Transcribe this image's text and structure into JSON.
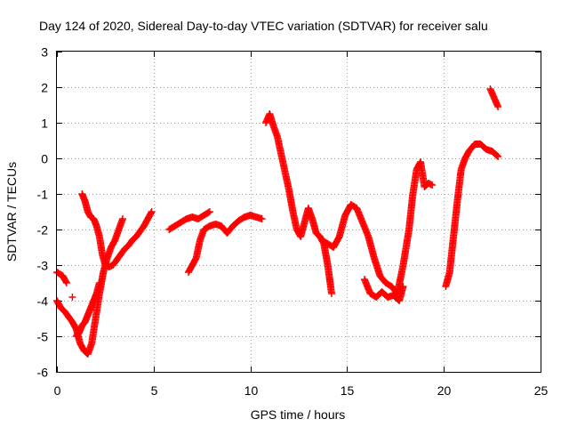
{
  "chart_data": {
    "type": "scatter",
    "title": "Day 124 of 2020, Sidereal Day-to-day VTEC variation (SDTVAR) for receiver salu",
    "xlabel": "GPS time / hours",
    "ylabel": "SDTVAR / TECUs",
    "xlim": [
      0,
      25
    ],
    "ylim": [
      -6,
      3
    ],
    "xticks": [
      "0",
      "5",
      "10",
      "15",
      "20",
      "25"
    ],
    "yticks": [
      "-6",
      "-5",
      "-4",
      "-3",
      "-2",
      "-1",
      "0",
      "1",
      "2",
      "3"
    ],
    "grid": true,
    "marker": "plus",
    "color": "#ff0000",
    "series": [
      {
        "name": "s1",
        "x": [
          0.0,
          0.3,
          0.5
        ],
        "y": [
          -3.2,
          -3.3,
          -3.5
        ]
      },
      {
        "name": "s2",
        "x": [
          0.0,
          0.2,
          0.4,
          0.6,
          0.8,
          1.0,
          1.2,
          1.4,
          1.6,
          1.8,
          2.0,
          2.2,
          2.4,
          2.6,
          2.8,
          3.0,
          3.2,
          3.4
        ],
        "y": [
          -4.0,
          -4.2,
          -4.3,
          -4.45,
          -4.6,
          -4.8,
          -5.2,
          -5.4,
          -5.5,
          -5.2,
          -4.5,
          -3.8,
          -3.2,
          -2.8,
          -2.5,
          -2.3,
          -2.0,
          -1.7
        ]
      },
      {
        "name": "s3",
        "x": [
          0.8
        ],
        "y": [
          -3.9
        ]
      },
      {
        "name": "s4",
        "x": [
          1.0,
          1.15,
          1.3,
          1.45,
          1.6,
          1.75,
          1.9,
          2.05,
          2.2
        ],
        "y": [
          -5.0,
          -4.9,
          -4.7,
          -4.6,
          -4.4,
          -4.2,
          -4.0,
          -3.8,
          -3.5
        ]
      },
      {
        "name": "s5",
        "x": [
          1.3,
          1.45,
          1.6,
          1.75,
          1.9,
          2.05,
          2.2,
          2.35,
          2.5,
          2.7,
          2.9,
          3.1,
          3.3,
          3.5,
          3.7,
          3.9,
          4.1,
          4.3,
          4.5,
          4.7,
          4.9
        ],
        "y": [
          -1.0,
          -1.2,
          -1.5,
          -1.65,
          -1.7,
          -1.9,
          -2.2,
          -2.7,
          -3.0,
          -3.05,
          -3.0,
          -2.85,
          -2.7,
          -2.55,
          -2.45,
          -2.3,
          -2.2,
          -2.05,
          -1.9,
          -1.7,
          -1.5
        ]
      },
      {
        "name": "s6",
        "x": [
          5.8,
          6.1,
          6.4,
          6.7,
          7.0,
          7.3,
          7.6,
          7.9
        ],
        "y": [
          -2.0,
          -1.9,
          -1.8,
          -1.7,
          -1.65,
          -1.7,
          -1.6,
          -1.5
        ]
      },
      {
        "name": "s7",
        "x": [
          6.8,
          7.0,
          7.2,
          7.4,
          7.6,
          7.9,
          8.2,
          8.5,
          8.8,
          9.1,
          9.4,
          9.7,
          10.0,
          10.3,
          10.6
        ],
        "y": [
          -3.2,
          -3.0,
          -2.8,
          -2.3,
          -2.0,
          -1.9,
          -1.85,
          -1.9,
          -2.1,
          -1.9,
          -1.75,
          -1.65,
          -1.6,
          -1.65,
          -1.7
        ]
      },
      {
        "name": "s8",
        "x": [
          10.8,
          11.0,
          11.2,
          11.4,
          11.6,
          11.8,
          12.0,
          12.2,
          12.4,
          12.6,
          12.8,
          13.0,
          13.2,
          13.4,
          13.6,
          13.8,
          14.0,
          14.2
        ],
        "y": [
          1.0,
          1.25,
          0.9,
          0.6,
          0.1,
          -0.4,
          -0.9,
          -1.5,
          -2.0,
          -2.2,
          -1.8,
          -1.4,
          -1.7,
          -2.1,
          -2.2,
          -2.4,
          -3.0,
          -3.8
        ]
      },
      {
        "name": "s9",
        "x": [
          13.7,
          14.0,
          14.3,
          14.6,
          14.9,
          15.2,
          15.5,
          15.8,
          16.1,
          16.4,
          16.7,
          17.0,
          17.3,
          17.6,
          17.9,
          18.2,
          18.4,
          18.6,
          18.8,
          19.0,
          19.2,
          19.4
        ],
        "y": [
          -2.3,
          -2.4,
          -2.5,
          -2.2,
          -1.6,
          -1.3,
          -1.4,
          -1.8,
          -2.2,
          -2.8,
          -3.3,
          -3.5,
          -3.6,
          -3.8,
          -3.0,
          -2.0,
          -1.0,
          -0.3,
          -0.1,
          -0.8,
          -0.7,
          -0.75
        ]
      },
      {
        "name": "s10",
        "x": [
          15.9,
          16.2,
          16.5,
          16.8,
          17.1,
          17.4,
          17.7,
          17.9
        ],
        "y": [
          -3.4,
          -3.8,
          -3.9,
          -3.75,
          -3.9,
          -3.85,
          -4.0,
          -3.6
        ]
      },
      {
        "name": "s11",
        "x": [
          20.1,
          20.3,
          20.5,
          20.7,
          20.9,
          21.1,
          21.3,
          21.6,
          21.9,
          22.2,
          22.5,
          22.8
        ],
        "y": [
          -3.6,
          -3.2,
          -2.2,
          -1.2,
          -0.3,
          0.0,
          0.2,
          0.4,
          0.4,
          0.25,
          0.2,
          0.05
        ]
      },
      {
        "name": "s12",
        "x": [
          22.4,
          22.6,
          22.8
        ],
        "y": [
          1.95,
          1.7,
          1.45
        ]
      }
    ]
  }
}
